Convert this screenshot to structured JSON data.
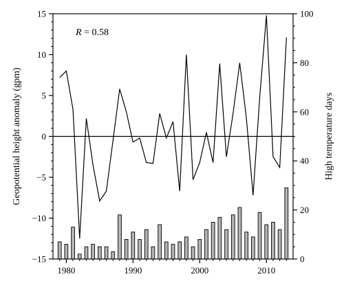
{
  "chart_data": {
    "type": "line+bar",
    "title": "",
    "xlabel": "",
    "ylabel_left": "Geopotential height anomaly (gpm)",
    "ylabel_right": "High temperature days",
    "annotation": "R = 0.58",
    "annotation_parts": {
      "var": "R",
      "rest": " = 0.58"
    },
    "xlim": [
      1978,
      2014
    ],
    "ylim_left": [
      -15,
      15
    ],
    "ylim_right": [
      0,
      100
    ],
    "x_ticks": [
      1980,
      1990,
      2000,
      2010
    ],
    "left_ticks": [
      -15,
      -10,
      -5,
      0,
      5,
      10,
      15
    ],
    "right_ticks": [
      0,
      20,
      40,
      60,
      80,
      100
    ],
    "zero_line": 0,
    "grid": false,
    "line_series": {
      "name": "",
      "axis": "left",
      "x": [
        1979,
        1980,
        1981,
        1982,
        1983,
        1984,
        1985,
        1986,
        1987,
        1988,
        1989,
        1990,
        1991,
        1992,
        1993,
        1994,
        1995,
        1996,
        1997,
        1998,
        1999,
        2000,
        2001,
        2002,
        2003,
        2004,
        2005,
        2006,
        2007,
        2008,
        2009,
        2010,
        2011,
        2012,
        2013
      ],
      "values": [
        7.2,
        8.0,
        3.3,
        -12.5,
        2.2,
        -3.5,
        -7.9,
        -6.7,
        -0.5,
        5.8,
        3.0,
        -0.7,
        -0.2,
        -3.2,
        -3.3,
        2.8,
        -0.2,
        1.8,
        -6.7,
        10.0,
        -5.3,
        -3.2,
        0.5,
        -3.2,
        8.9,
        -2.5,
        2.8,
        9.0,
        2.2,
        -7.2,
        4.8,
        14.8,
        -2.5,
        -3.8,
        12.1
      ]
    },
    "bar_series": {
      "name": "",
      "axis": "right",
      "x": [
        1979,
        1980,
        1981,
        1982,
        1983,
        1984,
        1985,
        1986,
        1987,
        1988,
        1989,
        1990,
        1991,
        1992,
        1993,
        1994,
        1995,
        1996,
        1997,
        1998,
        1999,
        2000,
        2001,
        2002,
        2003,
        2004,
        2005,
        2006,
        2007,
        2008,
        2009,
        2010,
        2011,
        2012,
        2013
      ],
      "values": [
        7,
        6,
        13,
        2,
        5,
        6,
        5,
        5,
        3,
        18,
        8,
        11,
        8,
        12,
        5,
        14,
        7,
        6,
        7,
        9,
        5,
        8,
        12,
        15,
        17,
        12,
        18,
        21,
        11,
        9,
        19,
        14,
        15,
        12,
        29
      ]
    }
  },
  "colors": {
    "line": "#000000",
    "bar_fill": "#b5b5b5",
    "bar_stroke": "#000000",
    "axis": "#000000"
  }
}
